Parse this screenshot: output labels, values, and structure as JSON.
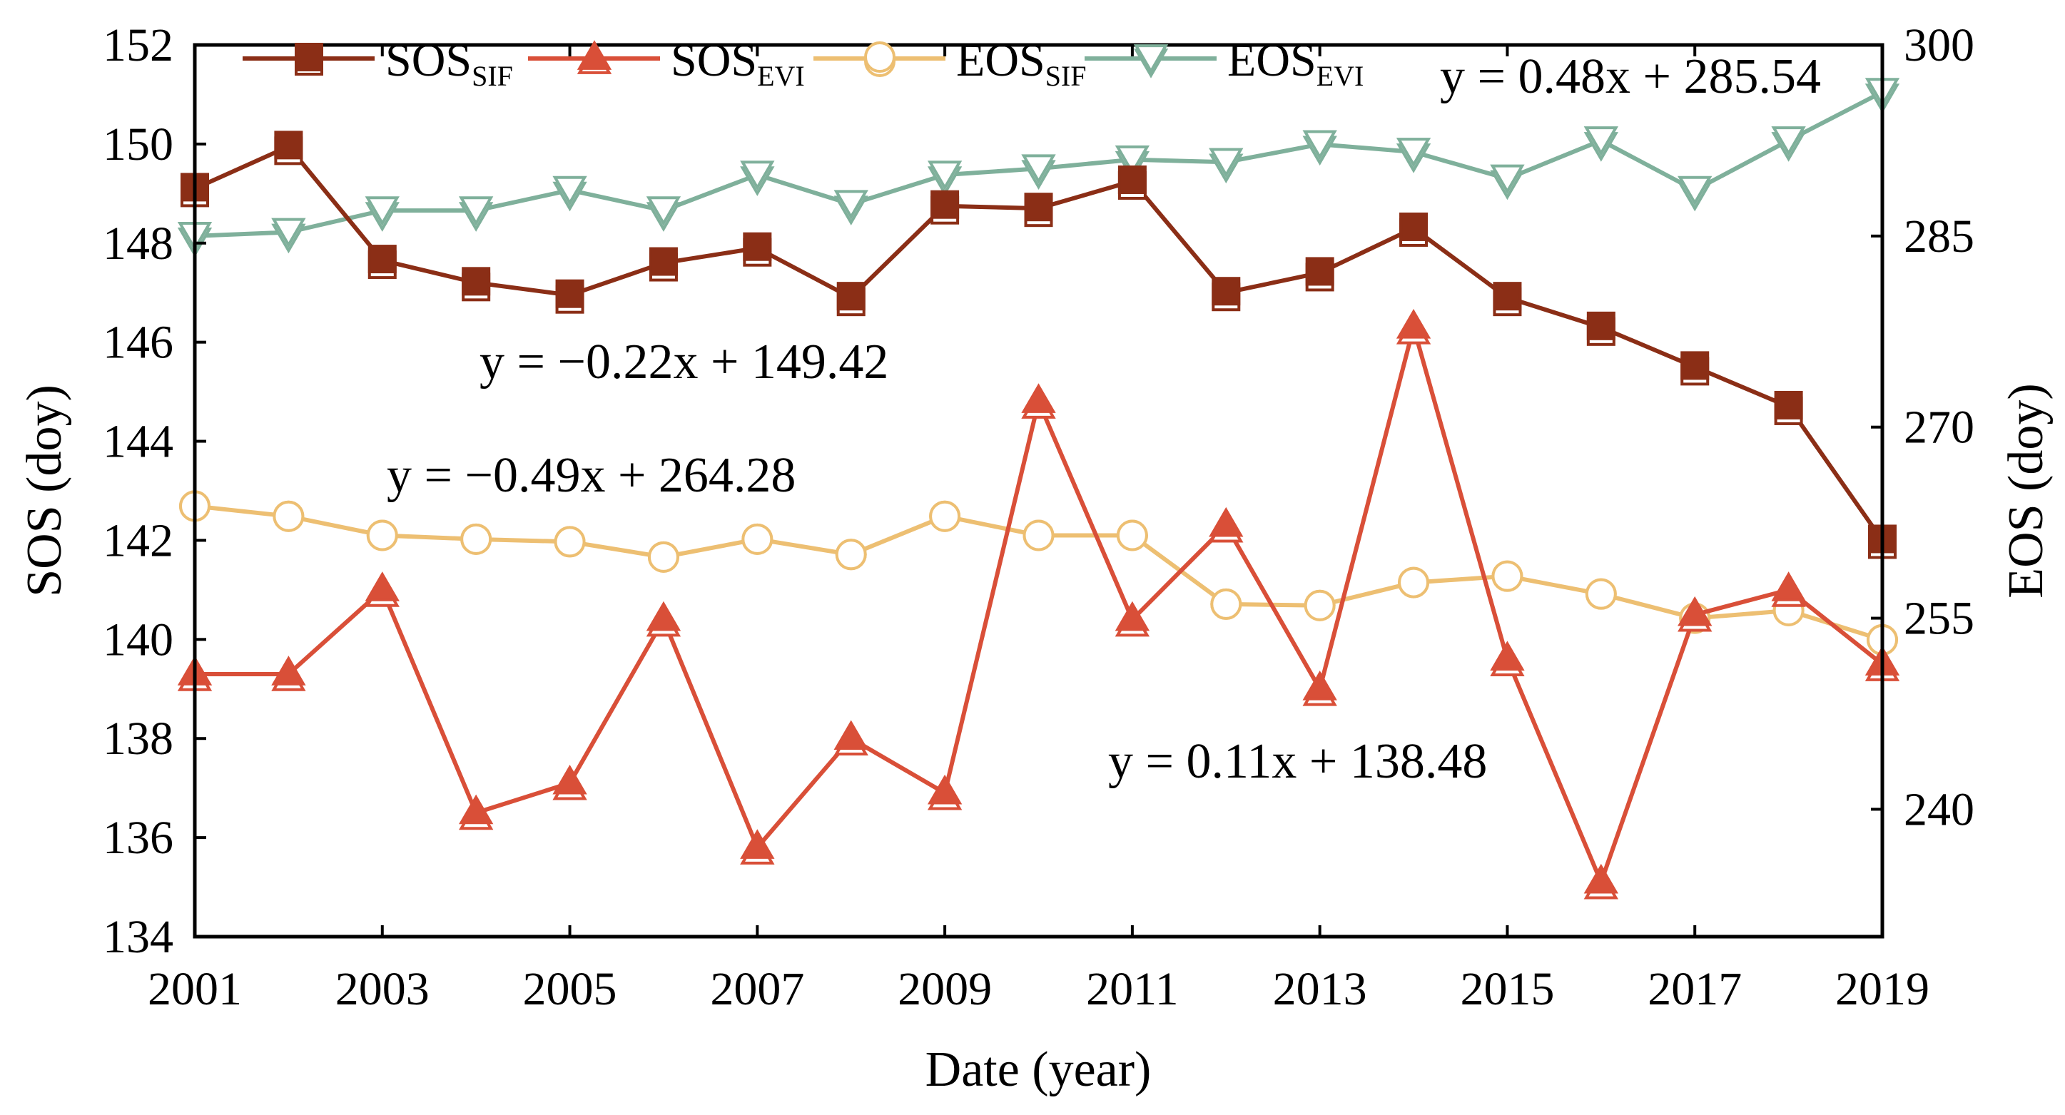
{
  "chart_data": {
    "type": "line",
    "title": "",
    "xlabel": "Date (year)",
    "ylabel_left": "SOS (doy)",
    "ylabel_right": "EOS (doy)",
    "xlim": [
      2001,
      2019
    ],
    "ylim_left": [
      134,
      152
    ],
    "ylim_right": [
      230,
      300
    ],
    "x_ticks": [
      2001,
      2003,
      2005,
      2007,
      2009,
      2011,
      2013,
      2015,
      2017,
      2019
    ],
    "y_ticks_left": [
      134,
      136,
      138,
      140,
      142,
      144,
      146,
      148,
      150,
      152
    ],
    "y_ticks_right": [
      240,
      255,
      270,
      285,
      300
    ],
    "x": [
      2001,
      2002,
      2003,
      2004,
      2005,
      2006,
      2007,
      2008,
      2009,
      2010,
      2011,
      2012,
      2013,
      2014,
      2015,
      2016,
      2017,
      2018,
      2019
    ],
    "series": [
      {
        "name": "SOS",
        "subscript": "SIF",
        "axis": "left",
        "marker": "square",
        "color": "#8B2E16",
        "values": [
          149.1,
          149.95,
          147.65,
          147.2,
          146.95,
          147.6,
          147.9,
          146.9,
          148.75,
          148.7,
          149.25,
          147.0,
          147.4,
          148.3,
          146.9,
          146.3,
          145.5,
          144.7,
          142.0
        ]
      },
      {
        "name": "SOS",
        "subscript": "EVI",
        "axis": "left",
        "marker": "triangle-up",
        "color": "#D94F38",
        "values": [
          139.3,
          139.3,
          141.0,
          136.5,
          137.1,
          140.4,
          135.8,
          138.0,
          136.9,
          144.8,
          140.4,
          142.3,
          139.0,
          146.3,
          139.6,
          135.1,
          140.5,
          141.0,
          139.5
        ]
      },
      {
        "name": "EOS",
        "subscript": "SIF",
        "axis": "right",
        "marker": "circle",
        "color": "#EDBF72",
        "values": [
          263.8,
          263.0,
          261.5,
          261.2,
          261.0,
          259.8,
          261.2,
          260.0,
          263.0,
          261.5,
          261.5,
          256.1,
          256.0,
          257.8,
          258.3,
          256.9,
          255.0,
          255.6,
          253.3
        ]
      },
      {
        "name": "EOS",
        "subscript": "EVI",
        "axis": "right",
        "marker": "triangle-down",
        "color": "#7FB09B",
        "values": [
          285.0,
          285.3,
          287.0,
          287.0,
          288.6,
          287.0,
          289.8,
          287.5,
          289.8,
          290.3,
          291.0,
          290.8,
          292.2,
          291.6,
          289.5,
          292.5,
          288.6,
          292.5,
          296.3
        ]
      }
    ],
    "annotations": [
      {
        "text": "y = 0.48x + 285.54"
      },
      {
        "text": "y = −0.22x + 149.42"
      },
      {
        "text": "y = −0.49x + 264.28"
      },
      {
        "text": "y = 0.11x + 138.48"
      }
    ],
    "legend_position": "top"
  }
}
